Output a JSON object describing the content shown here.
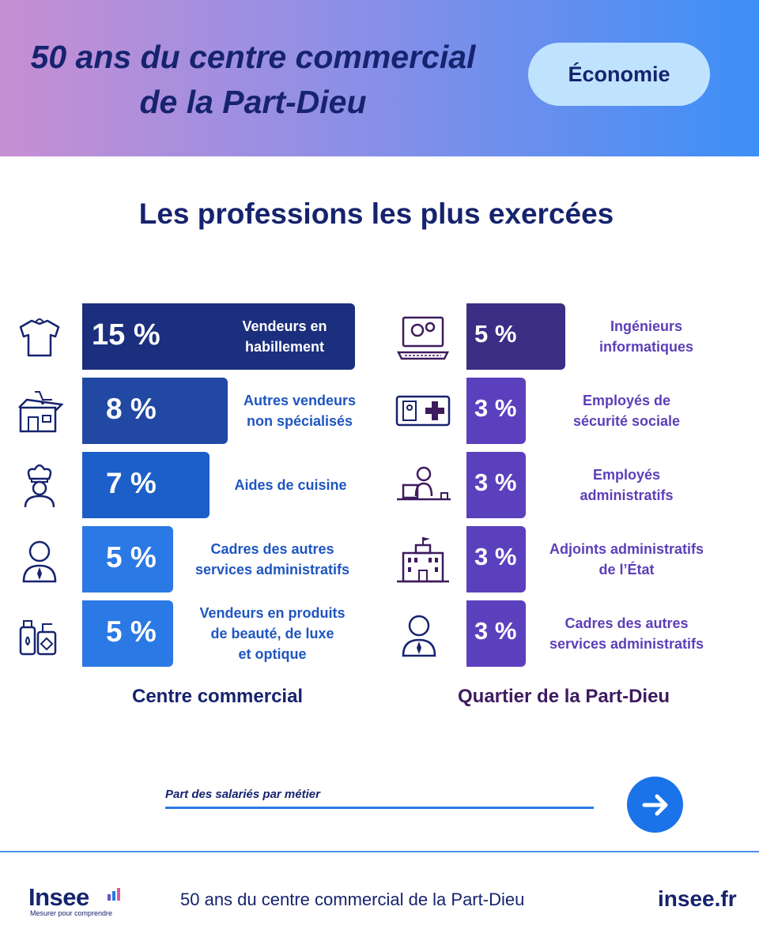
{
  "header": {
    "title_line1": "50 ans du centre commercial",
    "title_line2": "de la Part-Dieu",
    "category": "Économie"
  },
  "chart_data": {
    "type": "bar",
    "title": "Les professions les plus exercées",
    "unit": "%",
    "series": [
      {
        "name": "Centre commercial",
        "values": [
          15,
          8,
          7,
          5,
          5
        ],
        "categories": [
          [
            "Vendeurs en",
            "habillement"
          ],
          [
            "Autres vendeurs",
            "non spécialisés"
          ],
          [
            "Aides de cuisine"
          ],
          [
            "Cadres des autres",
            "services administratifs"
          ],
          [
            "Vendeurs en produits",
            "de beauté, de luxe",
            "et optique"
          ]
        ],
        "labels": [
          "15 %",
          "8 %",
          "7 %",
          "5 %",
          "5 %"
        ],
        "colors": [
          "#1b2f7e",
          "#2148a3",
          "#1c5fc8",
          "#2a79e4",
          "#2a79e4"
        ],
        "icons": [
          "tshirt-icon",
          "shop-icon",
          "chef-icon",
          "manager-icon",
          "cosmetics-icon"
        ]
      },
      {
        "name": "Quartier de la Part-Dieu",
        "values": [
          5,
          3,
          3,
          3,
          3
        ],
        "categories": [
          [
            "Ingénieurs",
            "informatiques"
          ],
          [
            "Employés de",
            "sécurité sociale"
          ],
          [
            "Employés",
            "administratifs"
          ],
          [
            "Adjoints administratifs",
            "de l’État"
          ],
          [
            "Cadres des autres",
            "services administratifs"
          ]
        ],
        "labels": [
          "5 %",
          "3 %",
          "3 %",
          "3 %",
          "3 %"
        ],
        "colors": [
          "#3c2d85",
          "#5b40bd",
          "#5b40bd",
          "#5b40bd",
          "#5b40bd"
        ],
        "icons": [
          "laptop-gears-icon",
          "health-card-icon",
          "office-worker-icon",
          "government-building-icon",
          "manager-icon"
        ]
      }
    ],
    "caption_colors": [
      "#16236e",
      "#3e1a5e"
    ]
  },
  "legend": {
    "text": "Part des salariés par métier"
  },
  "footer": {
    "logo_word": "Insee",
    "logo_tagline": "Mesurer pour comprendre",
    "text": "50 ans du centre commercial de la Part-Dieu",
    "site": "insee.fr"
  }
}
